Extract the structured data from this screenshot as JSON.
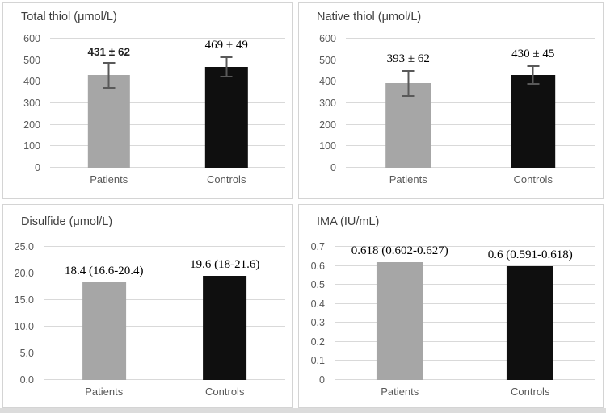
{
  "figure_title": "Thiol-disulfide and IMA bar charts, Patients vs Controls",
  "colors": {
    "patients_bar": "#a6a6a6",
    "controls_bar": "#0f0f0f",
    "gridline": "#d9d9d9",
    "axis_text": "#595959",
    "title_text": "#3f3f3f",
    "error_bar": "#595959",
    "data_label_text": "#000000",
    "panel_border": "#d4d4d4",
    "bottom_strip": "#dcdcdc"
  },
  "chart_data": [
    {
      "type": "bar",
      "title": "Total thiol (μmol/L)",
      "categories": [
        "Patients",
        "Controls"
      ],
      "values": [
        431,
        469
      ],
      "errors": [
        62,
        49
      ],
      "data_labels": [
        "431 ± 62",
        "469 ± 49"
      ],
      "ylim": [
        0,
        600
      ],
      "yticks": [
        0,
        100,
        200,
        300,
        400,
        500,
        600
      ],
      "ytick_labels": [
        "0",
        "100",
        "200",
        "300",
        "400",
        "500",
        "600"
      ],
      "grid": true,
      "legend": "none"
    },
    {
      "type": "bar",
      "title": "Native thiol (μmol/L)",
      "categories": [
        "Patients",
        "Controls"
      ],
      "values": [
        393,
        430
      ],
      "errors": [
        62,
        45
      ],
      "data_labels": [
        "393 ± 62",
        "430 ± 45"
      ],
      "ylim": [
        0,
        600
      ],
      "yticks": [
        0,
        100,
        200,
        300,
        400,
        500,
        600
      ],
      "ytick_labels": [
        "0",
        "100",
        "200",
        "300",
        "400",
        "500",
        "600"
      ],
      "grid": true,
      "legend": "none"
    },
    {
      "type": "bar",
      "title": "Disulfide (μmol/L)",
      "categories": [
        "Patients",
        "Controls"
      ],
      "values": [
        18.4,
        19.6
      ],
      "errors": null,
      "data_labels": [
        "18.4 (16.6-20.4)",
        "19.6 (18-21.6)"
      ],
      "ylim": [
        0,
        25
      ],
      "yticks": [
        0,
        5,
        10,
        15,
        20,
        25
      ],
      "ytick_labels": [
        "0.0",
        "5.0",
        "10.0",
        "15.0",
        "20.0",
        "25.0"
      ],
      "grid": true,
      "legend": "none"
    },
    {
      "type": "bar",
      "title": "IMA (IU/mL)",
      "categories": [
        "Patients",
        "Controls"
      ],
      "values": [
        0.618,
        0.6
      ],
      "errors": null,
      "data_labels": [
        "0.618 (0.602-0.627)",
        "0.6 (0.591-0.618)"
      ],
      "ylim": [
        0,
        0.7
      ],
      "yticks": [
        0,
        0.1,
        0.2,
        0.3,
        0.4,
        0.5,
        0.6,
        0.7
      ],
      "ytick_labels": [
        "0",
        "0.1",
        "0.2",
        "0.3",
        "0.4",
        "0.5",
        "0.6",
        "0.7"
      ],
      "grid": true,
      "legend": "none"
    }
  ]
}
